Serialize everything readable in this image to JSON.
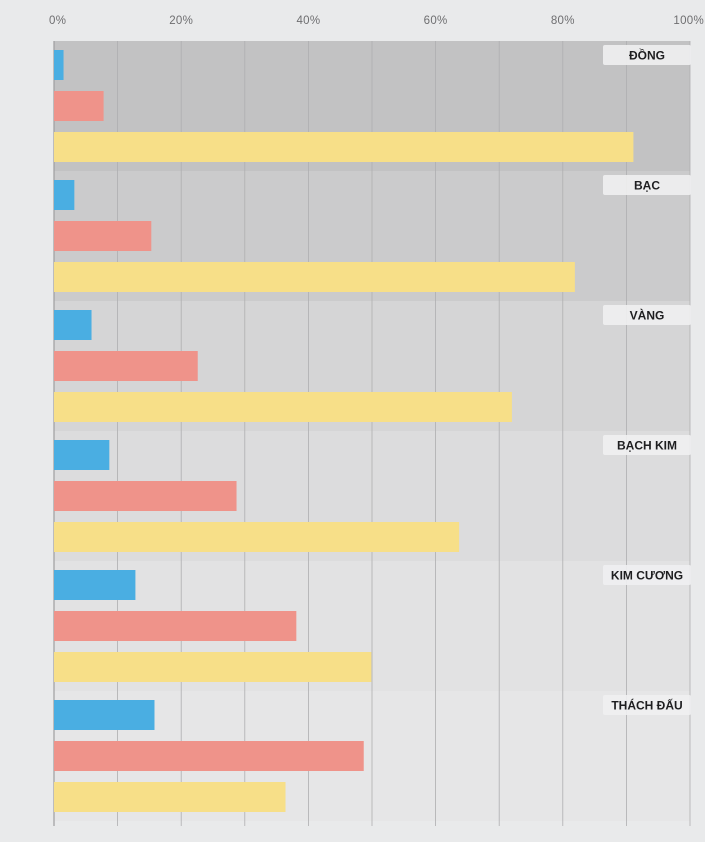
{
  "chart_data": {
    "type": "bar",
    "orientation": "horizontal",
    "x_axis": {
      "ticks": [
        "0%",
        "20%",
        "40%",
        "60%",
        "80%",
        "100%"
      ],
      "range": [
        0,
        100
      ],
      "position": "top",
      "grid": true
    },
    "categories": [
      "ĐỒNG",
      "BẠC",
      "VÀNG",
      "BẠCH KIM",
      "KIM CƯƠNG",
      "THÁCH ĐẤU"
    ],
    "category_background_colors": [
      "#c2c2c3",
      "#cbcbcc",
      "#d5d5d6",
      "#dcdcdd",
      "#e2e2e3",
      "#e6e6e7"
    ],
    "series": [
      {
        "color": "#4aaee2",
        "values": [
          1.5,
          3.2,
          5.9,
          8.7,
          12.8,
          15.8
        ]
      },
      {
        "color": "#ef938a",
        "values": [
          7.8,
          15.3,
          22.6,
          28.7,
          38.1,
          48.7
        ]
      },
      {
        "color": "#f7df88",
        "values": [
          91.1,
          81.9,
          72.0,
          63.7,
          49.9,
          36.4
        ]
      }
    ]
  }
}
